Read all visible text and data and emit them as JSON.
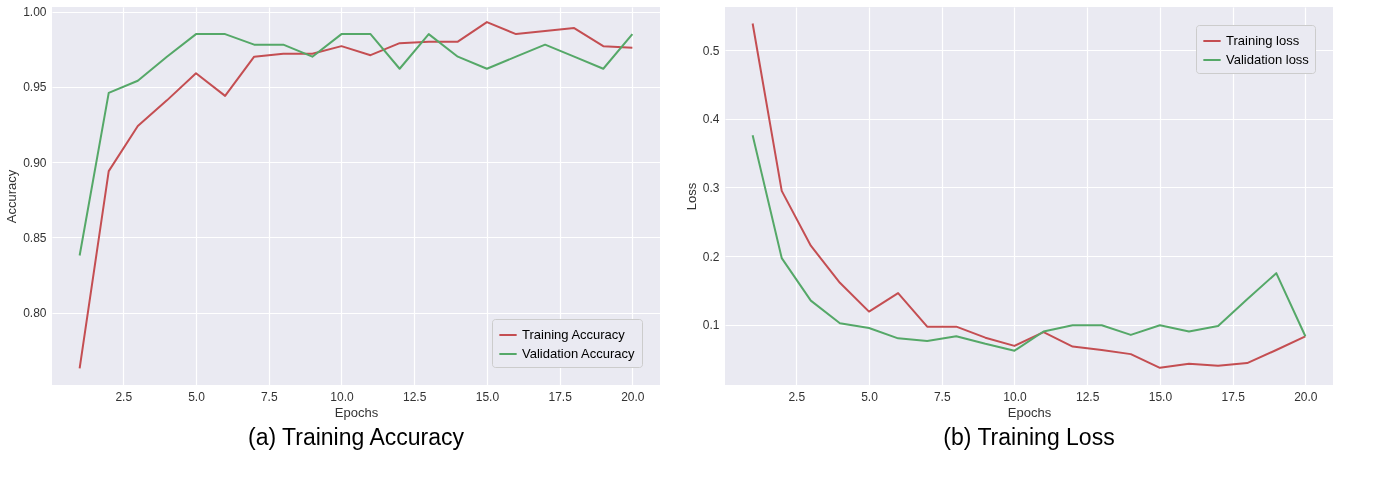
{
  "chart_data": [
    {
      "type": "line",
      "title": "(a) Training Accuracy",
      "xlabel": "Epochs",
      "ylabel": "Accuracy",
      "x": [
        1,
        2,
        3,
        4,
        5,
        6,
        7,
        8,
        9,
        10,
        11,
        12,
        13,
        14,
        15,
        16,
        17,
        18,
        19,
        20
      ],
      "series": [
        {
          "name": "Training Accuracy",
          "color": "#c44e52",
          "values": [
            0.763,
            0.894,
            0.924,
            0.941,
            0.959,
            0.944,
            0.97,
            0.972,
            0.972,
            0.977,
            0.971,
            0.979,
            0.98,
            0.98,
            0.993,
            0.985,
            0.987,
            0.989,
            0.977,
            0.976
          ]
        },
        {
          "name": "Validation Accuracy",
          "color": "#55a868",
          "values": [
            0.838,
            0.946,
            0.954,
            0.97,
            0.985,
            0.985,
            0.978,
            0.978,
            0.97,
            0.985,
            0.985,
            0.962,
            0.985,
            0.97,
            0.962,
            0.97,
            0.978,
            0.97,
            0.962,
            0.985
          ]
        }
      ],
      "xlim": [
        0.05,
        20.95
      ],
      "ylim": [
        0.752,
        1.003
      ],
      "xticks": [
        {
          "value": 2.5,
          "label": "2.5"
        },
        {
          "value": 5,
          "label": "5.0"
        },
        {
          "value": 7.5,
          "label": "7.5"
        },
        {
          "value": 10,
          "label": "10.0"
        },
        {
          "value": 12.5,
          "label": "12.5"
        },
        {
          "value": 15,
          "label": "15.0"
        },
        {
          "value": 17.5,
          "label": "17.5"
        },
        {
          "value": 20,
          "label": "20.0"
        }
      ],
      "yticks": [
        {
          "value": 0.8,
          "label": "0.80"
        },
        {
          "value": 0.85,
          "label": "0.85"
        },
        {
          "value": 0.9,
          "label": "0.90"
        },
        {
          "value": 0.95,
          "label": "0.95"
        },
        {
          "value": 1,
          "label": "1.00"
        }
      ],
      "grid": true,
      "legend": "bottom right"
    },
    {
      "type": "line",
      "title": "(b) Training Loss",
      "xlabel": "Epochs",
      "ylabel": "Loss",
      "x": [
        1,
        2,
        3,
        4,
        5,
        6,
        7,
        8,
        9,
        10,
        11,
        12,
        13,
        14,
        15,
        16,
        17,
        18,
        19,
        20
      ],
      "series": [
        {
          "name": "Training loss",
          "color": "#c44e52",
          "values": [
            0.539,
            0.295,
            0.215,
            0.161,
            0.119,
            0.146,
            0.097,
            0.097,
            0.081,
            0.069,
            0.089,
            0.068,
            0.063,
            0.057,
            0.037,
            0.043,
            0.04,
            0.044,
            0.063,
            0.083
          ]
        },
        {
          "name": "Validation loss",
          "color": "#55a868",
          "values": [
            0.376,
            0.197,
            0.135,
            0.102,
            0.095,
            0.08,
            0.076,
            0.083,
            0.072,
            0.062,
            0.09,
            0.099,
            0.099,
            0.085,
            0.099,
            0.09,
            0.098,
            0.137,
            0.175,
            0.083
          ]
        }
      ],
      "xlim": [
        0.05,
        20.95
      ],
      "ylim": [
        0.012,
        0.563
      ],
      "xticks": [
        {
          "value": 2.5,
          "label": "2.5"
        },
        {
          "value": 5,
          "label": "5.0"
        },
        {
          "value": 7.5,
          "label": "7.5"
        },
        {
          "value": 10,
          "label": "10.0"
        },
        {
          "value": 12.5,
          "label": "12.5"
        },
        {
          "value": 15,
          "label": "15.0"
        },
        {
          "value": 17.5,
          "label": "17.5"
        },
        {
          "value": 20,
          "label": "20.0"
        }
      ],
      "yticks": [
        0.1,
        0.2,
        0.3,
        0.4,
        0.5
      ],
      "grid": true,
      "legend": "top right"
    }
  ]
}
